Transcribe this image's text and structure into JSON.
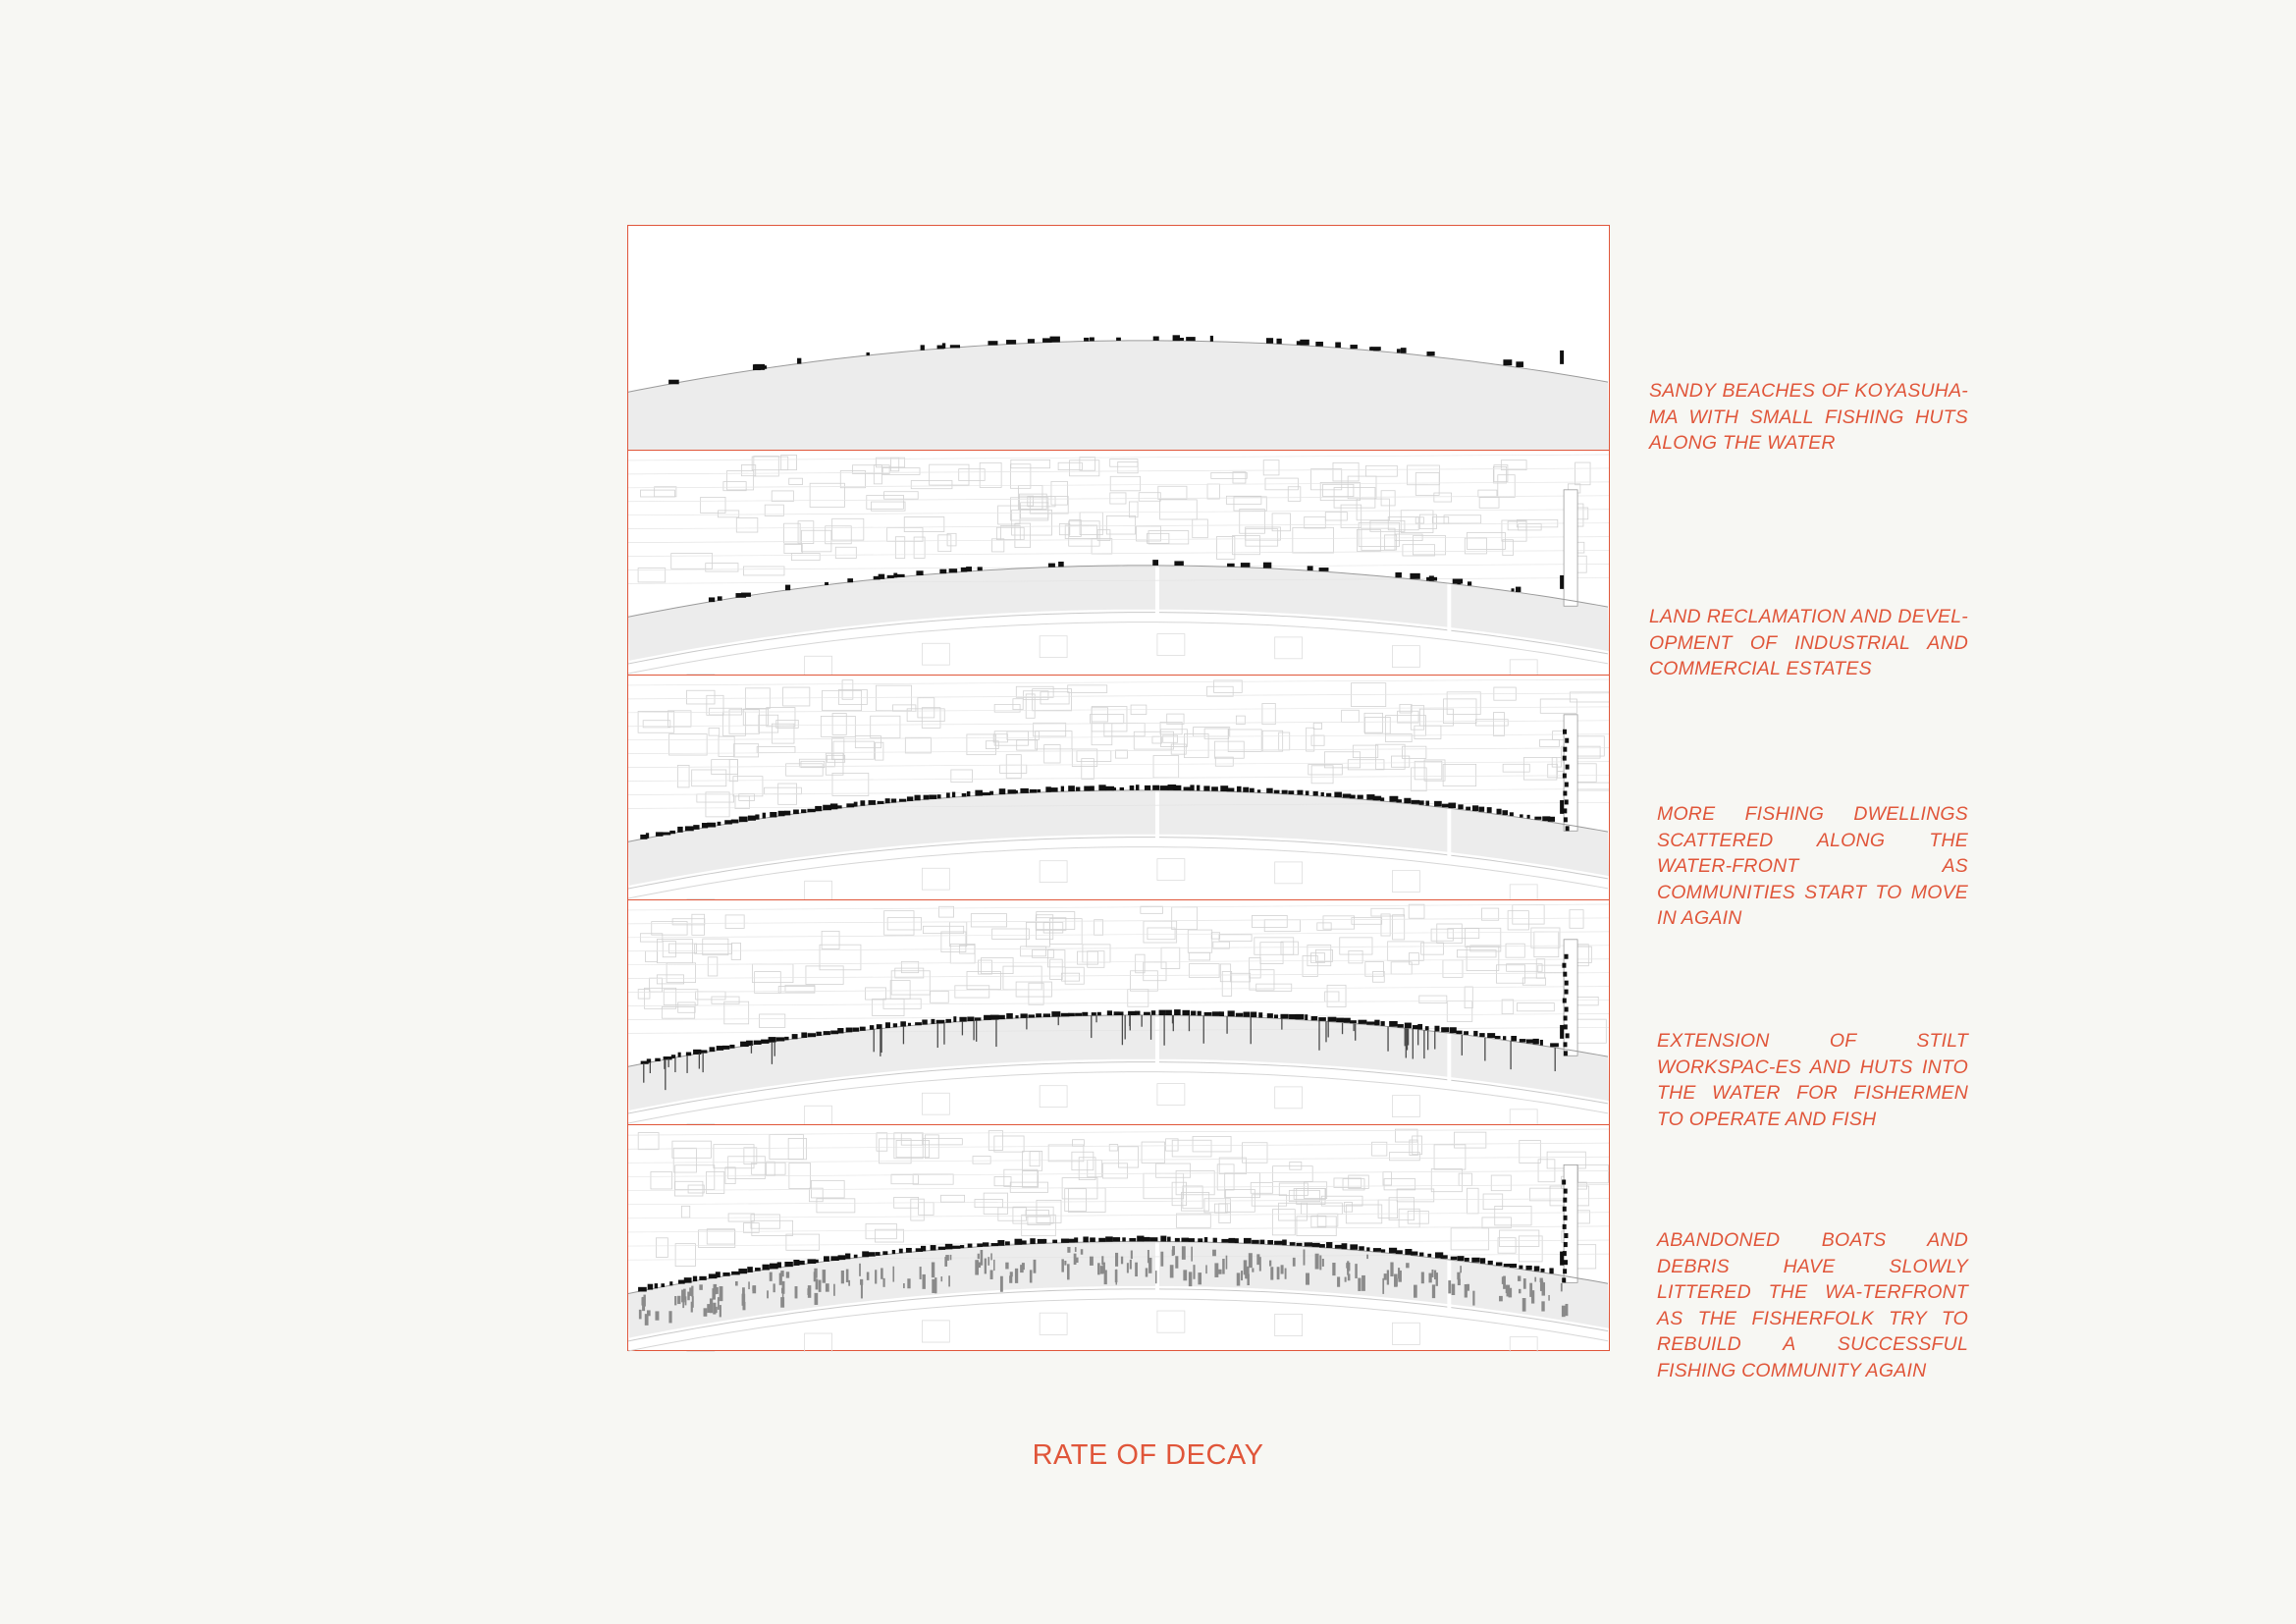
{
  "title": "RATE OF DECAY",
  "colors": {
    "accent": "#e0563a",
    "background": "#f7f7f3",
    "water": "#ececec",
    "structures": "#111111",
    "debris": "#8a8a8a"
  },
  "stages": [
    {
      "caption": "SANDY BEACHES OF KOYASUHA-MA WITH SMALL FISHING HUTS ALONG THE WATER",
      "city": false,
      "huts": "few",
      "stilts": false,
      "debris": false
    },
    {
      "caption": "LAND RECLAMATION AND DEVEL-OPMENT OF INDUSTRIAL AND COMMERCIAL ESTATES",
      "city": true,
      "huts": "few",
      "stilts": false,
      "debris": false
    },
    {
      "caption": "MORE FISHING DWELLINGS SCATTERED ALONG THE WATER-FRONT AS COMMUNITIES START TO MOVE IN AGAIN",
      "city": true,
      "huts": "many",
      "stilts": false,
      "debris": false
    },
    {
      "caption": "EXTENSION OF STILT WORKSPAC-ES AND HUTS INTO THE WATER FOR FISHERMEN TO OPERATE AND FISH",
      "city": true,
      "huts": "many",
      "stilts": true,
      "debris": false
    },
    {
      "caption": "ABANDONED BOATS AND DEBRIS HAVE SLOWLY LITTERED THE WA-TERFRONT AS THE FISHERFOLK TRY TO REBUILD A SUCCESSFUL FISHING COMMUNITY AGAIN",
      "city": true,
      "huts": "many",
      "stilts": false,
      "debris": true
    }
  ]
}
